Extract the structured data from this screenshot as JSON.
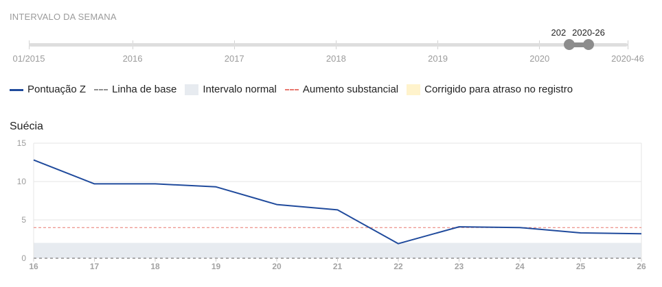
{
  "week_range": {
    "heading": "INTERVALO DA SEMANA",
    "domain": {
      "start": {
        "year": 2015,
        "week": 1
      },
      "end": {
        "year": 2020,
        "week": 46
      }
    },
    "ticks": [
      {
        "label": "01/2015",
        "year": 2015,
        "week": 1
      },
      {
        "label": "2016",
        "year": 2016,
        "week": 1
      },
      {
        "label": "2017",
        "year": 2017,
        "week": 1
      },
      {
        "label": "2018",
        "year": 2018,
        "week": 1
      },
      {
        "label": "2019",
        "year": 2019,
        "week": 1
      },
      {
        "label": "2020",
        "year": 2020,
        "week": 1
      },
      {
        "label": "2020-46",
        "year": 2020,
        "week": 46
      }
    ],
    "selection": {
      "start": {
        "label": "202",
        "year": 2020,
        "week": 16
      },
      "end": {
        "label": "2020-26",
        "year": 2020,
        "week": 26
      }
    }
  },
  "legend": {
    "baseline": {
      "label": "Linha de base",
      "color": "#8f8f8f"
    },
    "normal_range": {
      "label": "Intervalo normal",
      "color": "#e7ebf0"
    },
    "substantial_increase": {
      "label": "Aumento substancial",
      "color": "#e8776e"
    },
    "delay_corrected": {
      "label": "Corrigido para atraso no registro",
      "color": "#fff3cc"
    }
  },
  "chart_data": {
    "type": "line",
    "title": "Suécia",
    "xlabel": "",
    "ylabel": "",
    "x": [
      16,
      17,
      18,
      19,
      20,
      21,
      22,
      23,
      24,
      25,
      26
    ],
    "series": [
      {
        "name": "Pontuação Z",
        "color": "#1f4a9c",
        "values": [
          12.8,
          9.7,
          9.7,
          9.3,
          7.0,
          6.3,
          1.9,
          4.1,
          4.0,
          3.3,
          3.2
        ]
      }
    ],
    "baseline": 0,
    "normal_range": [
      0,
      2
    ],
    "substantial_increase": 4,
    "xlim": [
      16,
      26
    ],
    "ylim": [
      0,
      15
    ],
    "yticks": [
      0,
      5,
      10,
      15
    ],
    "grid": true
  }
}
